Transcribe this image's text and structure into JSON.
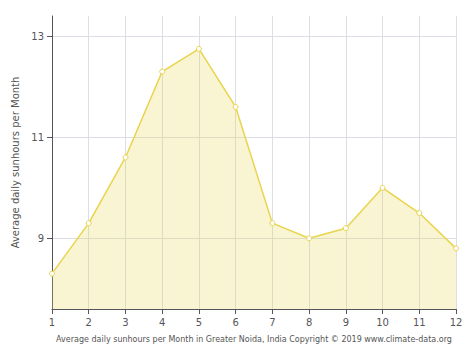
{
  "chart_data": {
    "type": "area",
    "xlabel": "Average daily sunhours per Month in Greater Noida, India Copyright © 2019 www.climate-data.org",
    "ylabel": "Average daily sunhours per Month",
    "x": [
      1,
      2,
      3,
      4,
      5,
      6,
      7,
      8,
      9,
      10,
      11,
      12
    ],
    "values": [
      8.3,
      9.3,
      10.6,
      12.3,
      12.75,
      11.6,
      9.3,
      9.0,
      9.2,
      10.0,
      9.5,
      8.8
    ],
    "color": "#E8D44D",
    "marker": "circle",
    "xlim": [
      1,
      12
    ],
    "ylim": [
      7.6,
      13.4
    ],
    "xticks": [
      1,
      2,
      3,
      4,
      5,
      6,
      7,
      8,
      9,
      10,
      11,
      12
    ],
    "yticks": [
      9,
      11,
      13
    ],
    "grid": true
  }
}
